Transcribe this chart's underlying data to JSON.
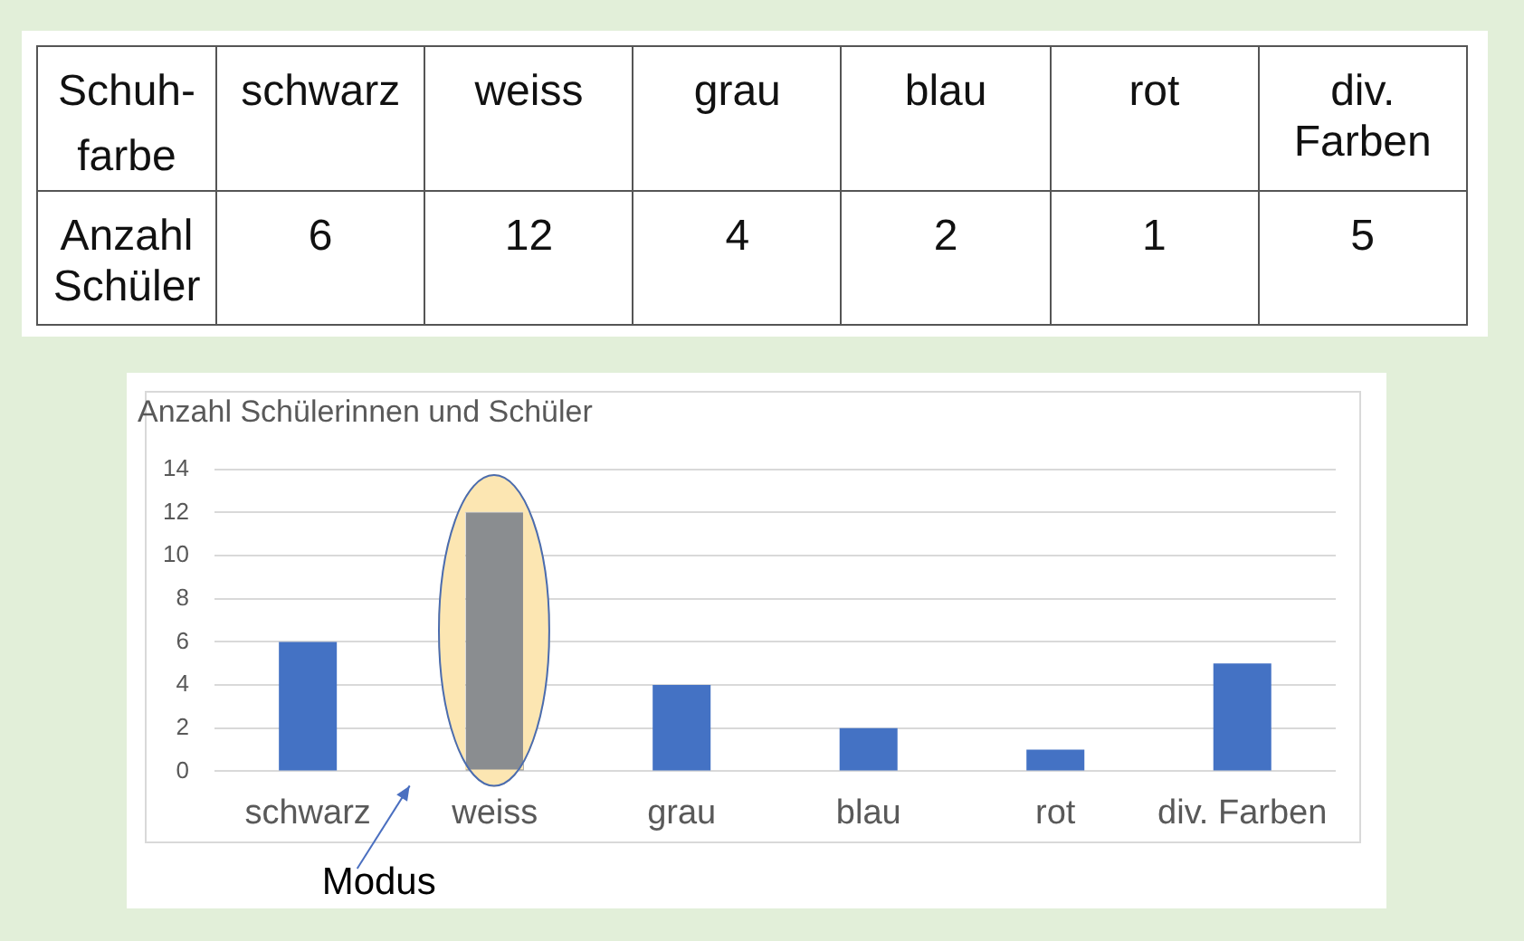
{
  "chart_data": [
    {
      "type": "heatmap",
      "categories": [
        "schwarz",
        "weiss",
        "grau",
        "blau",
        "rot",
        "div. Farben"
      ],
      "y_categories": [
        "Anzahl Schüler"
      ],
      "cells": [
        [
          6,
          12,
          4,
          2,
          1,
          5
        ]
      ],
      "data_labels": true,
      "annotations": [
        "Schuh-farbe"
      ]
    },
    {
      "type": "bar",
      "title": "Anzahl Schülerinnen und Schüler",
      "categories": [
        "schwarz",
        "weiss",
        "grau",
        "blau",
        "rot",
        "div. Farben"
      ],
      "values": [
        6,
        12,
        4,
        2,
        1,
        5
      ],
      "colors": [
        "#4472c4",
        "#8a8d90",
        "#4472c4",
        "#4472c4",
        "#4472c4",
        "#4472c4"
      ],
      "ylim": [
        0,
        14
      ],
      "yticks": [
        0,
        2,
        4,
        6,
        8,
        10,
        12,
        14
      ],
      "grid": "y",
      "legend": false,
      "annotations": [
        "Modus"
      ]
    }
  ]
}
